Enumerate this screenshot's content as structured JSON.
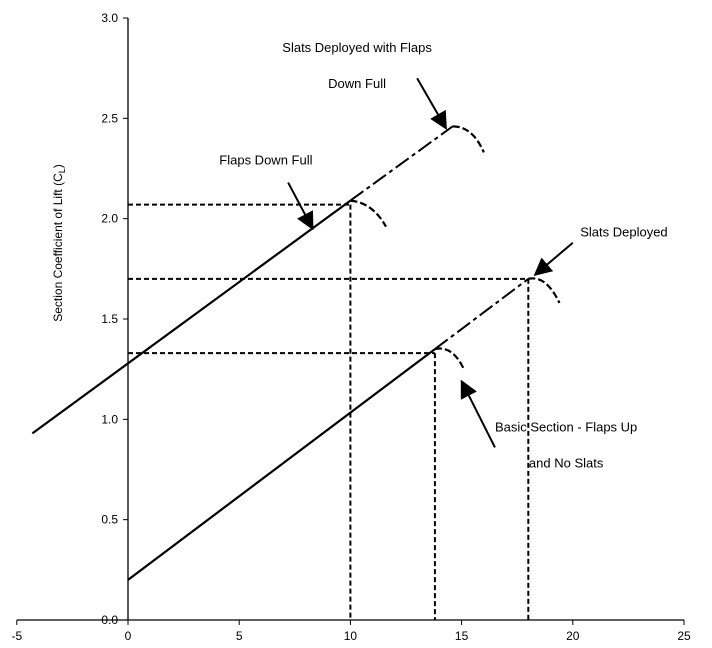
{
  "chart_data": {
    "type": "line",
    "ylabel": "Section Coefficient of Lift (C",
    "ylabel_sub": "L",
    "ylabel_end": ")",
    "xlim": [
      -5,
      25
    ],
    "ylim": [
      0,
      3.0
    ],
    "x_ticks": [
      "-5",
      "0",
      "5",
      "10",
      "15",
      "20",
      "25"
    ],
    "x_tick_values": [
      -5,
      0,
      5,
      10,
      15,
      20,
      25
    ],
    "y_ticks": [
      "0.0",
      "0.5",
      "1.0",
      "1.5",
      "2.0",
      "2.5",
      "3.0"
    ],
    "y_tick_values": [
      0,
      0.5,
      1.0,
      1.5,
      2.0,
      2.5,
      3.0
    ],
    "grid": false,
    "series": [
      {
        "id": "basic",
        "solid": [
          [
            0,
            0.2
          ],
          [
            13.8,
            1.35
          ]
        ],
        "stall_curve": [
          [
            13.8,
            1.35
          ],
          [
            14.6,
            1.33
          ],
          [
            15.1,
            1.25
          ]
        ],
        "dashed_extension": []
      },
      {
        "id": "slats",
        "solid": [
          [
            0,
            0.2
          ],
          [
            13.8,
            1.35
          ]
        ],
        "stall_curve": [
          [
            18.0,
            1.7
          ],
          [
            18.8,
            1.68
          ],
          [
            19.4,
            1.58
          ]
        ],
        "dashed_extension": [
          [
            13.8,
            1.35
          ],
          [
            18.0,
            1.7
          ]
        ]
      },
      {
        "id": "flaps",
        "solid": [
          [
            -4.3,
            0.93
          ],
          [
            10.0,
            2.09
          ]
        ],
        "stall_curve": [
          [
            10.0,
            2.09
          ],
          [
            11.0,
            2.04
          ],
          [
            11.6,
            1.96
          ]
        ],
        "dashed_extension": []
      },
      {
        "id": "slats_flaps",
        "solid": [
          [
            -4.3,
            0.93
          ],
          [
            10.0,
            2.09
          ]
        ],
        "stall_curve": [
          [
            14.6,
            2.46
          ],
          [
            15.5,
            2.42
          ],
          [
            16.0,
            2.33
          ]
        ],
        "dashed_extension": [
          [
            10.0,
            2.09
          ],
          [
            14.6,
            2.46
          ]
        ]
      }
    ],
    "reference_lines": [
      {
        "x": 13.8,
        "y": 1.33
      },
      {
        "x": 18.0,
        "y": 1.7
      },
      {
        "x": 10.0,
        "y": 2.07
      }
    ],
    "annotations": [
      {
        "id": "ann-slats-flaps",
        "lines": [
          "Slats Deployed with Flaps",
          "Down Full"
        ],
        "text_at": [
          10.3,
          2.83
        ],
        "line_gap": 0.18,
        "anchor": "middle",
        "arrow_from": [
          13.0,
          2.7
        ],
        "arrow_to": [
          14.3,
          2.45
        ]
      },
      {
        "id": "ann-flaps",
        "lines": [
          "Flaps Down Full"
        ],
        "text_at": [
          6.2,
          2.27
        ],
        "line_gap": 0.18,
        "anchor": "middle",
        "arrow_from": [
          7.2,
          2.18
        ],
        "arrow_to": [
          8.3,
          1.95
        ]
      },
      {
        "id": "ann-slats",
        "lines": [
          "Slats Deployed"
        ],
        "text_at": [
          22.3,
          1.91
        ],
        "line_gap": 0.18,
        "anchor": "middle",
        "arrow_from": [
          20.0,
          1.88
        ],
        "arrow_to": [
          18.3,
          1.72
        ]
      },
      {
        "id": "ann-basic",
        "lines": [
          "Basic Section - Flaps Up",
          "and No Slats"
        ],
        "text_at": [
          19.7,
          0.94
        ],
        "line_gap": 0.18,
        "anchor": "middle",
        "arrow_from": [
          16.5,
          0.86
        ],
        "arrow_to": [
          15.0,
          1.19
        ]
      }
    ]
  }
}
